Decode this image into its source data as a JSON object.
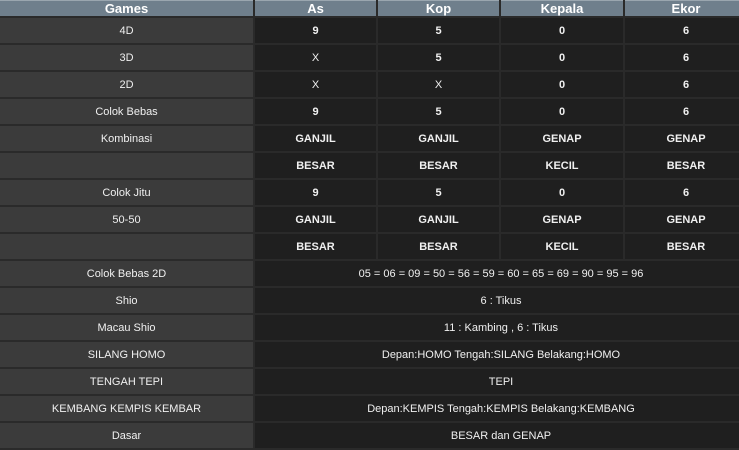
{
  "headers": [
    "Games",
    "As",
    "Kop",
    "Kepala",
    "Ekor"
  ],
  "rows4": [
    {
      "label": "4D",
      "vals": [
        "9",
        "5",
        "0",
        "6"
      ]
    },
    {
      "label": "3D",
      "vals": [
        "X",
        "5",
        "0",
        "6"
      ]
    },
    {
      "label": "2D",
      "vals": [
        "X",
        "X",
        "0",
        "6"
      ]
    },
    {
      "label": "Colok Bebas",
      "vals": [
        "9",
        "5",
        "0",
        "6"
      ]
    },
    {
      "label": "Kombinasi",
      "vals": [
        "GANJIL",
        "GANJIL",
        "GENAP",
        "GENAP"
      ]
    },
    {
      "label": "",
      "vals": [
        "BESAR",
        "BESAR",
        "KECIL",
        "BESAR"
      ]
    },
    {
      "label": "Colok Jitu",
      "vals": [
        "9",
        "5",
        "0",
        "6"
      ]
    },
    {
      "label": "50-50",
      "vals": [
        "GANJIL",
        "GANJIL",
        "GENAP",
        "GENAP"
      ]
    },
    {
      "label": "",
      "vals": [
        "BESAR",
        "BESAR",
        "KECIL",
        "BESAR"
      ]
    }
  ],
  "rowsSpan": [
    {
      "label": "Colok Bebas 2D",
      "value": "05 = 06 = 09 = 50 = 56 = 59 = 60 = 65 = 69 = 90 = 95 = 96"
    },
    {
      "label": "Shio",
      "value": "6 : Tikus"
    },
    {
      "label": "Macau Shio",
      "value": "11 : Kambing , 6 : Tikus"
    },
    {
      "label": "SILANG HOMO",
      "value": "Depan:HOMO Tengah:SILANG Belakang:HOMO"
    },
    {
      "label": "TENGAH TEPI",
      "value": "TEPI"
    },
    {
      "label": "KEMBANG KEMPIS KEMBAR",
      "value": "Depan:KEMPIS Tengah:KEMPIS Belakang:KEMBANG"
    },
    {
      "label": "Dasar",
      "value": "BESAR dan GENAP"
    }
  ]
}
